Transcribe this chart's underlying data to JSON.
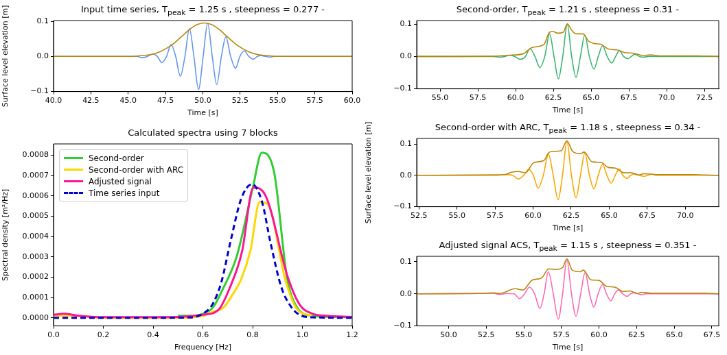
{
  "chart_data": [
    {
      "type": "line",
      "title": "Input time series, T$_{peak}$ = 1.25 s , steepness = 0.277 -",
      "xlabel": "Time [s]",
      "ylabel": "Surface level elevation [m]",
      "xlim": [
        40,
        60
      ],
      "ylim": [
        -0.101,
        0.103
      ],
      "xticks": [
        {
          "value": 40,
          "label": "40.0"
        },
        {
          "value": 42.5,
          "label": "42.5"
        },
        {
          "value": 45,
          "label": "45.0"
        },
        {
          "value": 47.5,
          "label": "47.5"
        },
        {
          "value": 50,
          "label": "50.0"
        },
        {
          "value": 52.5,
          "label": "52.5"
        },
        {
          "value": 55,
          "label": "55.0"
        },
        {
          "value": 57.5,
          "label": "57.5"
        },
        {
          "value": 60,
          "label": "60.0"
        }
      ],
      "yticks": [
        {
          "value": -0.1,
          "label": "−0.1"
        },
        {
          "value": 0,
          "label": "0.0"
        },
        {
          "value": 0.1,
          "label": "0.1"
        }
      ],
      "series": [
        {
          "color": "#6495ed",
          "x": [
            40,
            45,
            45.6,
            45.92,
            46.3,
            46.65,
            46.95,
            47.26,
            47.57,
            47.87,
            48.18,
            48.49,
            48.8,
            49.1,
            49.4,
            49.71,
            50.02,
            50.32,
            50.63,
            50.93,
            51.24,
            51.54,
            51.86,
            52.19,
            52.48,
            52.77,
            53.08,
            53.38,
            53.65,
            53.9,
            54.2,
            54.5,
            54.8,
            55.5,
            60
          ],
          "values": [
            0,
            0,
            0,
            -0.004,
            0,
            0.007,
            0,
            -0.018,
            0,
            0.034,
            0,
            -0.057,
            0,
            0.08,
            0,
            -0.095,
            0,
            0.095,
            0,
            -0.081,
            0,
            0.056,
            0,
            -0.034,
            0,
            0.016,
            0,
            -0.008,
            0,
            0.002,
            0,
            -0.002,
            0,
            0,
            0
          ]
        },
        {
          "color": "#b8860b",
          "x": [
            40,
            45.1,
            45.6,
            46.1,
            46.6,
            47.1,
            47.6,
            48.1,
            48.6,
            49.1,
            49.6,
            50.1,
            50.6,
            51.1,
            51.6,
            52.1,
            52.6,
            53.1,
            53.6,
            54.1,
            54.6,
            55.1,
            60
          ],
          "values": [
            0,
            0,
            0.001,
            0.003,
            0.006,
            0.013,
            0.024,
            0.039,
            0.058,
            0.077,
            0.091,
            0.096,
            0.091,
            0.077,
            0.058,
            0.039,
            0.024,
            0.013,
            0.006,
            0.003,
            0.001,
            0,
            0
          ]
        }
      ]
    },
    {
      "type": "line",
      "title": "Second-order, T$_{peak}$ = 1.21 s , steepness = 0.31 -",
      "xlabel": "Time [s]",
      "xlim": [
        53.45,
        73.45
      ],
      "ylim": [
        -0.1,
        0.111
      ],
      "xticks": [
        {
          "value": 55,
          "label": "55.0"
        },
        {
          "value": 57.5,
          "label": "57.5"
        },
        {
          "value": 60,
          "label": "60.0"
        },
        {
          "value": 62.5,
          "label": "62.5"
        },
        {
          "value": 65,
          "label": "65.0"
        },
        {
          "value": 67.5,
          "label": "67.5"
        },
        {
          "value": 70,
          "label": "70.0"
        },
        {
          "value": 72.5,
          "label": "72.5"
        }
      ],
      "yticks": [
        {
          "value": -0.1,
          "label": "−0.1"
        },
        {
          "value": 0,
          "label": "0.0"
        },
        {
          "value": 0.1,
          "label": "0.1"
        }
      ],
      "series": [
        {
          "color": "#3cb371",
          "x": [
            53.45,
            58.5,
            58.97,
            59.3,
            59.58,
            59.95,
            60.31,
            60.65,
            60.95,
            61.28,
            61.61,
            61.93,
            62.25,
            62.54,
            62.83,
            63.12,
            63.42,
            63.71,
            64.0,
            64.29,
            64.58,
            64.88,
            65.19,
            65.47,
            65.76,
            66.06,
            66.37,
            66.62,
            66.87,
            67.15,
            67.44,
            67.66,
            67.89,
            68.2,
            68.5,
            68.8,
            73.45
          ],
          "values": [
            0,
            0,
            -0.002,
            0,
            0.004,
            0,
            -0.009,
            0,
            0.024,
            0,
            -0.034,
            0,
            0.07,
            0,
            -0.069,
            0,
            0.099,
            0,
            -0.064,
            0,
            0.066,
            0,
            -0.039,
            0,
            0.033,
            0,
            -0.02,
            0,
            0.018,
            0,
            -0.007,
            0,
            0.007,
            0,
            -0.002,
            0,
            0
          ]
        },
        {
          "color": "#b8860b",
          "x": [
            53.45,
            58,
            59,
            59.6,
            60.49,
            61.1,
            61.87,
            62.25,
            62.48,
            62.78,
            63.16,
            63.42,
            63.7,
            64.0,
            64.46,
            64.84,
            65.22,
            65.68,
            66.14,
            66.75,
            67.21,
            67.82,
            68.43,
            68.96,
            69.5,
            70,
            71,
            72,
            73.45
          ],
          "values": [
            0,
            0.0005,
            0.002,
            0.004,
            0.008,
            0.028,
            0.037,
            0.075,
            0.077,
            0.072,
            0.075,
            0.101,
            0.082,
            0.07,
            0.07,
            0.047,
            0.04,
            0.037,
            0.023,
            0.02,
            0.012,
            0.01,
            0.003,
            0.005,
            0.002,
            0.002,
            0.002,
            0.002,
            0
          ]
        }
      ]
    },
    {
      "type": "line",
      "title": "Calculated spectra using 7 blocks",
      "xlabel": "Frequency [Hz]",
      "ylabel": "Spectral density [m²/Hz]",
      "xlim": [
        0,
        1.2
      ],
      "ylim": [
        -4e-05,
        0.000856
      ],
      "legend": "top left",
      "xticks": [
        {
          "value": 0,
          "label": "0.0"
        },
        {
          "value": 0.2,
          "label": "0.2"
        },
        {
          "value": 0.4,
          "label": "0.4"
        },
        {
          "value": 0.6,
          "label": "0.6"
        },
        {
          "value": 0.8,
          "label": "0.8"
        },
        {
          "value": 1,
          "label": "1.0"
        },
        {
          "value": 1.2,
          "label": "1.2"
        }
      ],
      "yticks": [
        {
          "value": 0,
          "label": "0.0000"
        },
        {
          "value": 0.0001,
          "label": "0.0001"
        },
        {
          "value": 0.0002,
          "label": "0.0002"
        },
        {
          "value": 0.0003,
          "label": "0.0003"
        },
        {
          "value": 0.0004,
          "label": "0.0004"
        },
        {
          "value": 0.0005,
          "label": "0.0005"
        },
        {
          "value": 0.0006,
          "label": "0.0006"
        },
        {
          "value": 0.0007,
          "label": "0.0007"
        },
        {
          "value": 0.0008,
          "label": "0.0008"
        }
      ],
      "series": [
        {
          "name": "Second-order",
          "color": "#32cd32",
          "x": [
            0.5,
            0.55,
            0.6,
            0.64,
            0.68,
            0.736,
            0.8,
            0.837,
            0.886,
            0.938,
            0.979,
            1.04,
            1.1,
            1.2
          ],
          "values": [
            1e-05,
            1e-05,
            2e-05,
            5e-05,
            0.000141,
            0.000302,
            0.000636,
            0.000813,
            0.000719,
            0.0002,
            5e-05,
            1e-05,
            5e-06,
            3e-06
          ]
        },
        {
          "name": "Second-order with ARC",
          "color": "#ffd700",
          "x": [
            0,
            0.05,
            0.1,
            0.2,
            0.3,
            0.4,
            0.5,
            0.6,
            0.64,
            0.683,
            0.717,
            0.754,
            0.791,
            0.828,
            0.86,
            0.933,
            0.98,
            1.04
          ],
          "values": [
            1e-05,
            1e-05,
            1e-05,
            0,
            0,
            0,
            0,
            1e-05,
            3e-05,
            5e-05,
            0.00011,
            0.00019,
            0.00033,
            0.00057,
            0.00056,
            0.00018,
            4e-05,
            1e-05
          ]
        },
        {
          "name": "Adjusted signal",
          "color": "#ff1493",
          "x": [
            0,
            0.046,
            0.1,
            0.15,
            0.2,
            0.3,
            0.4,
            0.5,
            0.6,
            0.662,
            0.708,
            0.757,
            0.803,
            0.849,
            0.942,
            0.99,
            1.039,
            1.1,
            1.2
          ],
          "values": [
            1.5e-05,
            2e-05,
            1e-05,
            5e-06,
            3e-06,
            3e-06,
            3e-06,
            4e-06,
            1.5e-05,
            3.8e-05,
            0.000147,
            0.000324,
            0.000641,
            0.000608,
            0.000197,
            6.3e-05,
            2.1e-05,
            1e-05,
            4e-06
          ]
        },
        {
          "name": "Time series input",
          "color": "#0000cd",
          "line_style": "dashed",
          "x": [
            0,
            0.2,
            0.4,
            0.55,
            0.6,
            0.639,
            0.674,
            0.713,
            0.754,
            0.798,
            0.837,
            0.873,
            0.915,
            0.956,
            0.997,
            1.05,
            1.2
          ],
          "values": [
            0,
            0,
            0,
            2e-06,
            2e-05,
            6.7e-05,
            0.000174,
            0.000386,
            0.000586,
            0.000658,
            0.000574,
            0.000363,
            0.000152,
            5.2e-05,
            1e-05,
            2e-06,
            0
          ]
        }
      ]
    },
    {
      "type": "line",
      "title": "Second-order with ARC, T$_{peak}$ = 1.18 s , steepness = 0.34 -",
      "xlabel": "Time [s]",
      "ylabel": "Surface level elevation [m]",
      "xlim": [
        52.35,
        72.2
      ],
      "ylim": [
        -0.1,
        0.1175
      ],
      "xticks": [
        {
          "value": 52.5,
          "label": "52.5"
        },
        {
          "value": 55,
          "label": "55.0"
        },
        {
          "value": 57.5,
          "label": "57.5"
        },
        {
          "value": 60,
          "label": "60.0"
        },
        {
          "value": 62.5,
          "label": "62.5"
        },
        {
          "value": 65,
          "label": "65.0"
        },
        {
          "value": 67.5,
          "label": "67.5"
        },
        {
          "value": 70,
          "label": "70.0"
        }
      ],
      "yticks": [
        {
          "value": -0.1,
          "label": "−0.1"
        },
        {
          "value": 0,
          "label": "0.0"
        },
        {
          "value": 0.1,
          "label": "0.1"
        }
      ],
      "series": [
        {
          "color": "#ffa500",
          "x": [
            52.35,
            57.5,
            58.3,
            58.65,
            59.04,
            59.38,
            59.72,
            60.02,
            60.33,
            60.67,
            61.01,
            61.32,
            61.64,
            61.93,
            62.22,
            62.52,
            62.82,
            63.11,
            63.4,
            63.7,
            64.0,
            64.28,
            64.56,
            64.85,
            65.13,
            65.4,
            65.66,
            65.9,
            66.15,
            66.42,
            66.68,
            66.98,
            67.28,
            67.55,
            67.8,
            68.1,
            72.2
          ],
          "values": [
            0,
            0.001,
            0.002,
            0,
            -0.012,
            0,
            0.019,
            0,
            -0.041,
            0,
            0.067,
            0,
            -0.078,
            0,
            0.108,
            0,
            -0.071,
            0,
            0.071,
            0,
            -0.043,
            0,
            0.035,
            0,
            -0.025,
            0,
            0.02,
            0,
            -0.01,
            0,
            0.005,
            0,
            -0.003,
            0,
            0.004,
            0,
            0
          ]
        },
        {
          "color": "#b8860b",
          "x": [
            52.35,
            57.5,
            58.2,
            58.59,
            59.04,
            59.5,
            60.03,
            60.71,
            61.04,
            61.31,
            61.84,
            62.22,
            62.6,
            63.12,
            63.35,
            63.88,
            64.48,
            64.94,
            65.39,
            65.99,
            66.45,
            66.9,
            67.28,
            67.9,
            68.5,
            69.5,
            70.5,
            72.2
          ],
          "values": [
            0,
            0.001,
            0.003,
            0.01,
            0.012,
            0.008,
            0.04,
            0.047,
            0.073,
            0.076,
            0.078,
            0.11,
            0.076,
            0.069,
            0.074,
            0.043,
            0.041,
            0.025,
            0.023,
            0.008,
            0.008,
            0.001,
            0.005,
            0.003,
            0.002,
            0.002,
            0.002,
            0
          ]
        }
      ]
    },
    {
      "type": "line",
      "title": "Adjusted signal ACS, T$_{peak}$ = 1.15 s , steepness = 0.351 -",
      "xlabel": "Time [s]",
      "xlim": [
        47.88,
        67.96
      ],
      "ylim": [
        -0.1,
        0.117
      ],
      "xticks": [
        {
          "value": 50,
          "label": "50.0"
        },
        {
          "value": 52.5,
          "label": "52.5"
        },
        {
          "value": 55,
          "label": "55.0"
        },
        {
          "value": 57.5,
          "label": "57.5"
        },
        {
          "value": 60,
          "label": "60.0"
        },
        {
          "value": 62.5,
          "label": "62.5"
        },
        {
          "value": 65,
          "label": "65.0"
        },
        {
          "value": 67.5,
          "label": "67.5"
        }
      ],
      "yticks": [
        {
          "value": -0.1,
          "label": "−0.1"
        },
        {
          "value": 0,
          "label": "0.0"
        },
        {
          "value": 0.1,
          "label": "0.1"
        }
      ],
      "series": [
        {
          "color": "#ff69b4",
          "x": [
            47.88,
            53.0,
            53.35,
            53.9,
            54.35,
            54.72,
            55.05,
            55.38,
            55.72,
            56.07,
            56.35,
            56.63,
            56.96,
            57.29,
            57.58,
            57.86,
            58.17,
            58.47,
            58.78,
            59.08,
            59.37,
            59.66,
            59.94,
            60.22,
            60.5,
            60.79,
            61.04,
            61.29,
            61.58,
            61.86,
            62.1,
            62.36,
            62.6,
            62.82,
            63.1,
            67.96
          ],
          "values": [
            0,
            0.002,
            -0.002,
            0.001,
            0,
            -0.015,
            0,
            0.021,
            0,
            -0.046,
            0,
            0.069,
            0,
            -0.079,
            0,
            0.107,
            0,
            -0.07,
            0,
            0.067,
            0,
            -0.041,
            0,
            0.029,
            0,
            -0.022,
            0,
            0.012,
            0,
            -0.008,
            0,
            0.004,
            0,
            -0.003,
            0,
            0
          ]
        },
        {
          "color": "#b8860b",
          "x": [
            47.88,
            52,
            53,
            53.42,
            54.42,
            54.95,
            55.56,
            56.17,
            56.66,
            57.09,
            57.58,
            57.86,
            58.24,
            58.77,
            58.96,
            59.46,
            59.99,
            60.53,
            61.06,
            61.6,
            62.06,
            62.52,
            62.82,
            63.5,
            64.5,
            65.5,
            67,
            67.96
          ],
          "values": [
            0,
            0.001,
            0.003,
            0.001,
            0.016,
            0.012,
            0.043,
            0.049,
            0.078,
            0.076,
            0.082,
            0.109,
            0.073,
            0.069,
            0.074,
            0.044,
            0.042,
            0.023,
            0.021,
            0.007,
            0.009,
            0.001,
            0.005,
            0.002,
            0.002,
            0.002,
            0.002,
            0
          ]
        }
      ]
    }
  ]
}
